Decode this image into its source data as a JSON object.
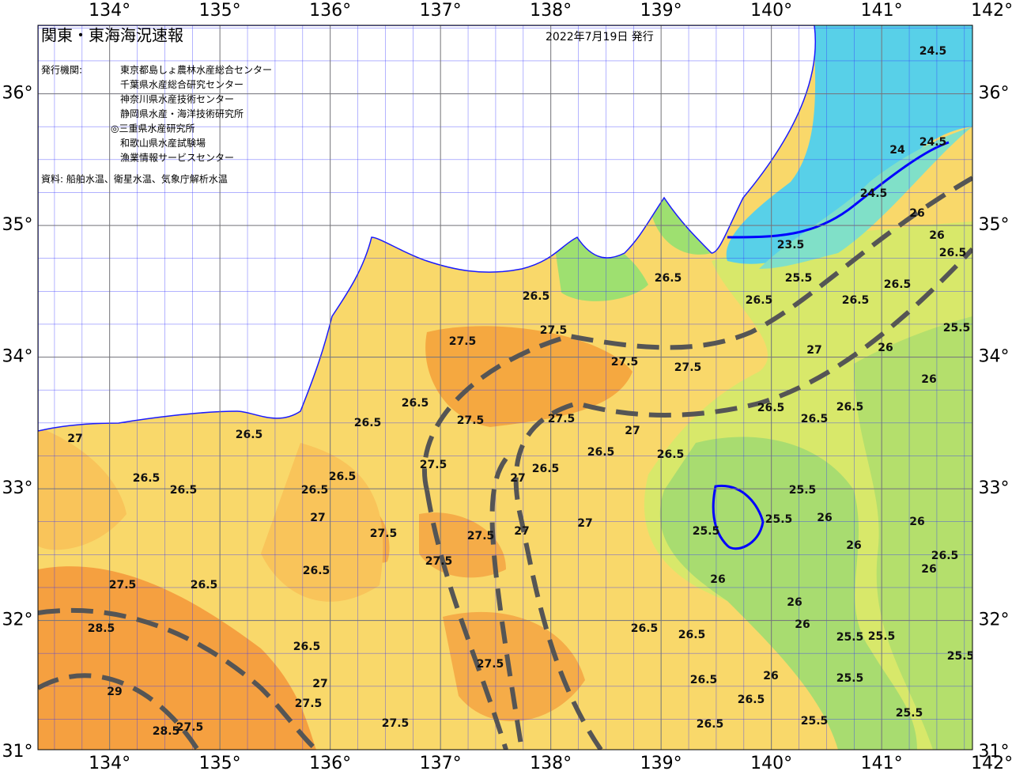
{
  "header": {
    "title": "関東・東海海況速報",
    "issue_date": "2022年7月19日 発行",
    "issuers_label": "発行機関:",
    "issuers": [
      "東京都島しょ農林水産総合センター",
      "千葉県水産総合研究センター",
      "神奈川県水産技術センター",
      "静岡県水産・海洋技術研究所",
      "◎三重県水産研究所",
      "和歌山県水産試験場",
      "漁業情報サービスセンター"
    ],
    "source": "資料: 船舶水温、衛星水温、気象庁解析水温"
  },
  "map": {
    "lon_ticks": [
      {
        "value": 134,
        "label": "134°"
      },
      {
        "value": 135,
        "label": "135°"
      },
      {
        "value": 136,
        "label": "136°"
      },
      {
        "value": 137,
        "label": "137°"
      },
      {
        "value": 138,
        "label": "138°"
      },
      {
        "value": 139,
        "label": "139°"
      },
      {
        "value": 140,
        "label": "140°"
      },
      {
        "value": 141,
        "label": "141°"
      },
      {
        "value": 142,
        "label": "142°"
      }
    ],
    "lat_ticks": [
      {
        "value": 36,
        "label": "36°"
      },
      {
        "value": 35,
        "label": "35°"
      },
      {
        "value": 34,
        "label": "34°"
      },
      {
        "value": 33,
        "label": "33°"
      },
      {
        "value": 32,
        "label": "32°"
      },
      {
        "value": 31,
        "label": "31°"
      }
    ],
    "contour_labels": [
      26.5,
      27.5,
      27.5,
      27.5,
      27.5,
      26.5,
      26.5,
      25.5,
      26.5,
      26.5,
      27,
      26,
      26.5,
      23.5,
      26,
      24,
      24.5,
      24.5,
      24.5,
      26.5,
      26.5,
      26.5,
      26.5,
      26.5,
      27,
      27.5,
      27.5,
      26.5,
      26.5,
      26.5,
      27,
      26.5,
      26.5,
      27.5,
      27,
      26.5,
      26.5,
      26.5,
      25.5,
      25.5,
      26,
      25.5,
      27.5,
      27.5,
      27,
      27,
      27,
      27.5,
      26.5,
      26.5,
      27.5,
      28.5,
      29,
      28.5,
      27.5,
      27.5,
      26.5,
      27,
      27.5,
      27.5,
      26.5,
      26.5,
      26.5,
      26.5,
      26,
      26,
      26,
      26,
      26.5,
      25.5,
      25.5,
      25.5,
      25.5,
      25.5,
      25.5,
      26.5,
      26,
      26,
      26,
      26,
      25.5,
      26
    ]
  }
}
